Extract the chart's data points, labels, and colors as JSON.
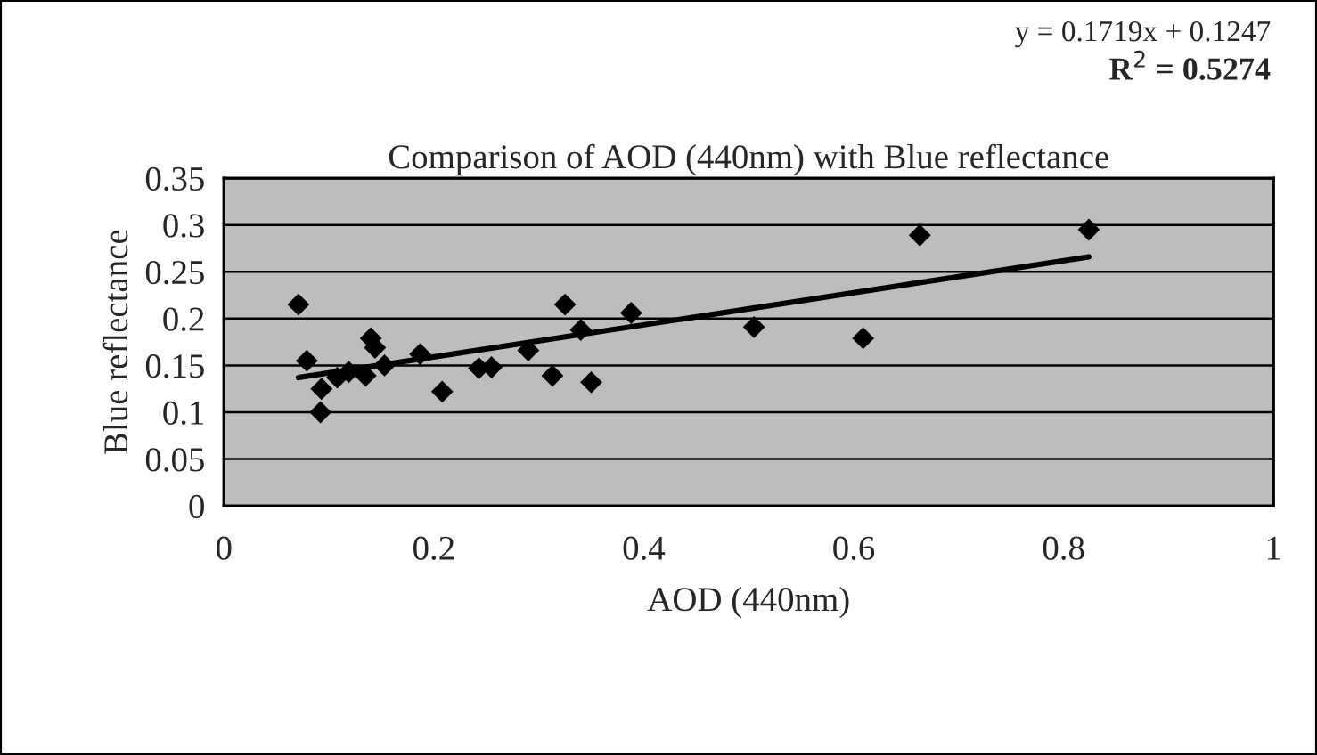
{
  "chart_data": {
    "type": "scatter",
    "title": "Comparison of AOD (440nm) with Blue reflectance",
    "xlabel": "AOD (440nm)",
    "ylabel": "Blue reflectance",
    "annotations": [
      "y = 0.1719x + 0.1247",
      "R$^{2}$ = 0.5274"
    ],
    "series": [
      {
        "color": "#000000",
        "marker": "diamond",
        "x": [
          0.071,
          0.079,
          0.093,
          0.092,
          0.108,
          0.119,
          0.135,
          0.14,
          0.144,
          0.153,
          0.187,
          0.208,
          0.243,
          0.255,
          0.29,
          0.313,
          0.325,
          0.34,
          0.35,
          0.388,
          0.505,
          0.609,
          0.663,
          0.824
        ],
        "values": [
          0.215,
          0.155,
          0.125,
          0.1,
          0.137,
          0.143,
          0.139,
          0.179,
          0.169,
          0.15,
          0.162,
          0.122,
          0.147,
          0.148,
          0.166,
          0.139,
          0.215,
          0.188,
          0.132,
          0.206,
          0.191,
          0.179,
          0.289,
          0.295
        ]
      },
      {
        "type": "line",
        "color": "#000000",
        "x": [
          0.071,
          0.824
        ],
        "values": [
          0.137,
          0.266
        ]
      }
    ],
    "xlim": [
      0,
      1
    ],
    "xticks": [
      0,
      0.2,
      0.4,
      0.6,
      0.8,
      1
    ],
    "ylim": [
      0,
      0.35
    ],
    "yticks": [
      0,
      0.05,
      0.1,
      0.15,
      0.2,
      0.25,
      0.3,
      0.35
    ],
    "grid": "y",
    "legend": false
  }
}
